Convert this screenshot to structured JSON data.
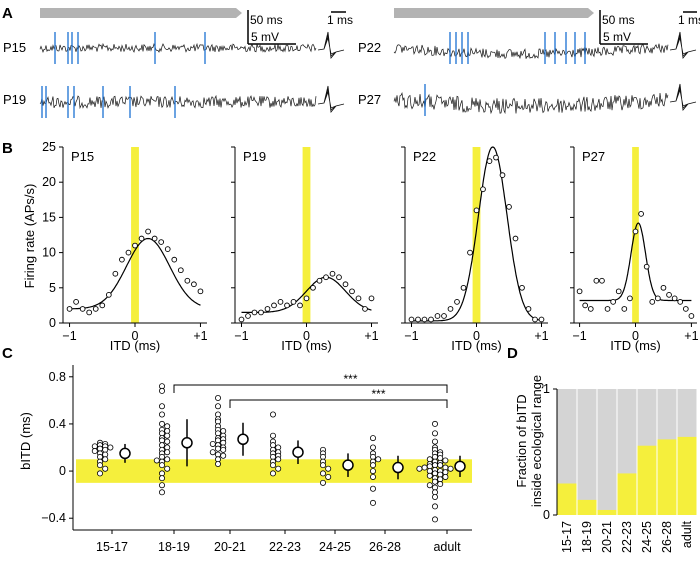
{
  "panel_labels": {
    "a": "A",
    "b": "B",
    "c": "C",
    "d": "D"
  },
  "colors": {
    "highlight": "#f5ef3c",
    "spike": "#2b7bd6",
    "stim_bar": "#b3b3b3",
    "bar_gray": "#d4d4d4",
    "trace": "#111111"
  },
  "traces": {
    "ages": [
      "P15",
      "P19",
      "P22",
      "P27"
    ],
    "scale_time": "50 ms",
    "scale_volt": "5 mV",
    "scale_spike": "1 ms"
  },
  "chart_data": [
    {
      "type": "scatter",
      "panel": "B",
      "name": "P15",
      "title": "P15",
      "xlabel": "ITD (ms)",
      "ylabel": "Firing rate (APs/s)",
      "xlim": [
        -1.1,
        1.1
      ],
      "ylim": [
        0,
        25
      ],
      "xticks": [
        -1,
        0,
        1
      ],
      "xtick_labels": [
        "−1",
        "0",
        "+1"
      ],
      "yticks": [
        0,
        5,
        10,
        15,
        20,
        25
      ],
      "points_x": [
        -1.0,
        -0.9,
        -0.8,
        -0.7,
        -0.6,
        -0.5,
        -0.4,
        -0.3,
        -0.2,
        -0.1,
        0.0,
        0.1,
        0.2,
        0.3,
        0.4,
        0.5,
        0.6,
        0.7,
        0.8,
        0.9,
        1.0
      ],
      "points_y": [
        2.0,
        3.0,
        2.0,
        1.5,
        2.0,
        2.5,
        4.0,
        7.0,
        9.0,
        10.0,
        11.0,
        12.0,
        13.0,
        12.0,
        11.5,
        10.5,
        9.0,
        7.5,
        6.0,
        5.5,
        4.5
      ],
      "fit": {
        "base": 2.0,
        "amp": 10.0,
        "mu": 0.2,
        "sigma": 0.33
      }
    },
    {
      "type": "scatter",
      "panel": "B",
      "name": "P19",
      "title": "P19",
      "xlabel": "ITD (ms)",
      "ylabel": "",
      "xlim": [
        -1.1,
        1.1
      ],
      "ylim": [
        0,
        25
      ],
      "xticks": [
        -1,
        0,
        1
      ],
      "xtick_labels": [
        "−1",
        "0",
        "+1"
      ],
      "points_x": [
        -1.0,
        -0.9,
        -0.8,
        -0.7,
        -0.6,
        -0.5,
        -0.4,
        -0.3,
        -0.2,
        -0.1,
        0.0,
        0.1,
        0.2,
        0.3,
        0.4,
        0.5,
        0.6,
        0.7,
        0.8,
        0.9,
        1.0
      ],
      "points_y": [
        0.5,
        1.0,
        1.5,
        1.5,
        2.0,
        2.5,
        3.0,
        2.5,
        3.0,
        2.5,
        3.5,
        5.0,
        6.0,
        6.5,
        7.0,
        6.5,
        5.5,
        4.5,
        3.5,
        2.0,
        3.5
      ],
      "fit": {
        "base": 1.5,
        "amp": 5.0,
        "mu": 0.3,
        "sigma": 0.3
      }
    },
    {
      "type": "scatter",
      "panel": "B",
      "name": "P22",
      "title": "P22",
      "xlabel": "ITD (ms)",
      "ylabel": "",
      "xlim": [
        -1.1,
        1.1
      ],
      "ylim": [
        0,
        25
      ],
      "xticks": [
        -1,
        0,
        1
      ],
      "xtick_labels": [
        "−1",
        "0",
        "+1"
      ],
      "points_x": [
        -1.0,
        -0.9,
        -0.8,
        -0.7,
        -0.6,
        -0.5,
        -0.4,
        -0.3,
        -0.2,
        -0.1,
        0.0,
        0.1,
        0.2,
        0.3,
        0.4,
        0.5,
        0.6,
        0.7,
        0.8,
        0.9,
        1.0
      ],
      "points_y": [
        0.5,
        0.5,
        0.5,
        0.5,
        1.0,
        1.0,
        2.0,
        3.0,
        5.0,
        10.0,
        16.0,
        19.0,
        23.0,
        23.5,
        21.0,
        16.5,
        12.0,
        5.0,
        2.0,
        0.5,
        0.5
      ],
      "fit": {
        "base": 0.3,
        "amp": 24.7,
        "mu": 0.25,
        "sigma": 0.22
      }
    },
    {
      "type": "scatter",
      "panel": "B",
      "name": "P27",
      "title": "P27",
      "xlabel": "ITD (ms)",
      "ylabel": "",
      "xlim": [
        -1.1,
        1.1
      ],
      "ylim": [
        0,
        25
      ],
      "xticks": [
        -1,
        0,
        1
      ],
      "xtick_labels": [
        "−1",
        "0",
        "+1"
      ],
      "points_x": [
        -1.0,
        -0.9,
        -0.8,
        -0.7,
        -0.6,
        -0.5,
        -0.4,
        -0.3,
        -0.2,
        -0.1,
        0.0,
        0.1,
        0.2,
        0.3,
        0.4,
        0.5,
        0.6,
        0.7,
        0.8,
        0.9,
        1.0
      ],
      "points_y": [
        4.5,
        2.5,
        2.0,
        6.0,
        6.0,
        2.0,
        3.0,
        4.5,
        2.0,
        3.5,
        13.0,
        15.5,
        8.0,
        3.0,
        3.5,
        5.0,
        4.0,
        3.5,
        3.0,
        2.0,
        1.0
      ],
      "fit": {
        "base": 3.2,
        "amp": 11.0,
        "mu": 0.05,
        "sigma": 0.13
      }
    },
    {
      "type": "scatter",
      "panel": "C",
      "xlabel": "",
      "ylabel": "bITD (ms)",
      "ylim": [
        -0.5,
        0.9
      ],
      "yticks": [
        -0.4,
        0,
        0.4,
        0.8
      ],
      "ytick_labels": [
        "−0.4",
        "0",
        "0.4",
        "0.8"
      ],
      "categories": [
        "15-17",
        "18-19",
        "20-21",
        "22-23",
        "24-25",
        "26-28",
        "adult"
      ],
      "band": [
        -0.1,
        0.1
      ],
      "points": [
        [
          0.21,
          0.23,
          0.19,
          0.22,
          0.17,
          0.2,
          0.14,
          0.24,
          0.12,
          0.1,
          0.05,
          0.02,
          -0.02,
          0.08,
          0.15,
          0.21,
          0.18
        ],
        [
          0.72,
          0.68,
          0.55,
          0.48,
          0.4,
          0.38,
          0.35,
          0.34,
          0.3,
          0.28,
          0.26,
          0.22,
          0.2,
          0.18,
          0.16,
          0.12,
          0.1,
          0.08,
          0.05,
          0.02,
          -0.02,
          -0.06,
          -0.12,
          -0.18,
          0.32,
          0.25,
          0.15,
          0.09
        ],
        [
          0.62,
          0.55,
          0.48,
          0.42,
          0.38,
          0.35,
          0.32,
          0.3,
          0.28,
          0.26,
          0.24,
          0.22,
          0.2,
          0.18,
          0.16,
          0.14,
          0.1,
          0.06,
          0.34,
          0.27,
          0.23,
          0.19,
          0.13,
          0.44
        ],
        [
          0.48,
          0.3,
          0.25,
          0.2,
          0.18,
          0.15,
          0.12,
          0.1,
          0.08,
          0.05,
          0.02,
          -0.02,
          0.22,
          0.16,
          0.13
        ],
        [
          0.18,
          0.12,
          0.08,
          0.05,
          0.02,
          -0.02,
          -0.05,
          0.15,
          -0.1
        ],
        [
          0.28,
          0.2,
          0.15,
          0.1,
          0.05,
          0.0,
          -0.05,
          -0.15,
          -0.27,
          0.12,
          0.08
        ],
        [
          0.4,
          0.32,
          0.25,
          0.2,
          0.18,
          0.15,
          0.12,
          0.1,
          0.08,
          0.06,
          0.05,
          0.04,
          0.03,
          0.02,
          0.01,
          0.0,
          -0.01,
          -0.02,
          -0.03,
          -0.05,
          -0.07,
          -0.09,
          -0.11,
          -0.14,
          -0.18,
          -0.22,
          -0.3,
          -0.41,
          0.14,
          0.09,
          0.03,
          -0.04,
          0.07,
          0.0,
          0.11,
          -0.06,
          0.16,
          0.05,
          0.02,
          -0.12
        ]
      ],
      "means": [
        0.15,
        0.24,
        0.27,
        0.16,
        0.05,
        0.03,
        0.04
      ],
      "err": [
        0.08,
        0.2,
        0.14,
        0.1,
        0.1,
        0.1,
        0.09
      ],
      "significance": [
        {
          "from": "18-19",
          "to": "adult",
          "label": "***"
        },
        {
          "from": "20-21",
          "to": "adult",
          "label": "***"
        }
      ]
    },
    {
      "type": "bar",
      "panel": "D",
      "ylabel_line1": "Fraction of bITD",
      "ylabel_line2": "inside ecological range",
      "ylim": [
        0,
        1
      ],
      "yticks": [
        0,
        1
      ],
      "categories": [
        "15-17",
        "18-19",
        "20-21",
        "22-23",
        "24-25",
        "26-28",
        "adult"
      ],
      "values": [
        0.25,
        0.12,
        0.04,
        0.33,
        0.55,
        0.6,
        0.62
      ]
    }
  ]
}
